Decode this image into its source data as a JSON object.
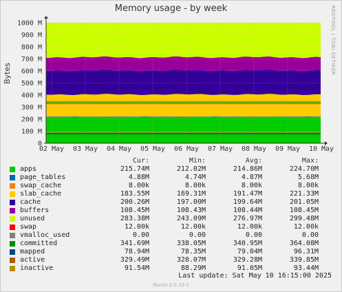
{
  "title": "Memory usage - by week",
  "side_note": "RRDTOOL / TOBI OETIKER",
  "footer": "Munin 2.0.33-1",
  "last_update": "Last update:  Sat May 10 16:15:00 2025",
  "legend_headers": {
    "cur": "Cur:",
    "min": "Min:",
    "avg": "Avg:",
    "max": "Max:"
  },
  "chart_data": {
    "type": "area",
    "title": "Memory usage - by week",
    "ylabel": "Bytes",
    "xlabel": "",
    "ylim": [
      0,
      1000000000
    ],
    "y_ticks": [
      "0",
      "100 M",
      "200 M",
      "300 M",
      "400 M",
      "500 M",
      "600 M",
      "700 M",
      "800 M",
      "900 M",
      "1000 M"
    ],
    "x_ticks": [
      "02 May",
      "03 May",
      "04 May",
      "05 May",
      "06 May",
      "07 May",
      "08 May",
      "09 May",
      "10 May"
    ],
    "grid": true,
    "legend_position": "bottom",
    "stacked_series": [
      {
        "name": "apps",
        "color": "#00cc00",
        "approx_value_M": 216
      },
      {
        "name": "page_tables",
        "color": "#0066b3",
        "approx_value_M": 5
      },
      {
        "name": "swap_cache",
        "color": "#ff8000",
        "approx_value_M": 0
      },
      {
        "name": "slab_cache",
        "color": "#ffcc00",
        "approx_value_M": 184
      },
      {
        "name": "cache",
        "color": "#330099",
        "approx_value_M": 201
      },
      {
        "name": "buffers",
        "color": "#990099",
        "approx_value_M": 108
      },
      {
        "name": "unused",
        "color": "#ccff00",
        "approx_value_M": 283
      },
      {
        "name": "swap",
        "color": "#ff0000",
        "approx_value_M": 0
      }
    ],
    "line_series": [
      {
        "name": "committed",
        "color": "#008f00",
        "approx_value_M": 342
      },
      {
        "name": "mapped",
        "color": "#00487d",
        "approx_value_M": 79
      },
      {
        "name": "active",
        "color": "#b35a00",
        "approx_value_M": 329
      },
      {
        "name": "inactive",
        "color": "#b38f00",
        "approx_value_M": 92
      }
    ]
  },
  "legend": [
    {
      "name": "apps",
      "color": "#00cc00",
      "cur": "215.74M",
      "min": "212.02M",
      "avg": "214.86M",
      "max": "224.70M"
    },
    {
      "name": "page_tables",
      "color": "#0066b3",
      "cur": "4.88M",
      "min": "4.74M",
      "avg": "4.87M",
      "max": "5.68M"
    },
    {
      "name": "swap_cache",
      "color": "#ff8000",
      "cur": "8.00k",
      "min": "8.00k",
      "avg": "8.00k",
      "max": "8.00k"
    },
    {
      "name": "slab_cache",
      "color": "#ffcc00",
      "cur": "183.55M",
      "min": "169.31M",
      "avg": "191.47M",
      "max": "221.33M"
    },
    {
      "name": "cache",
      "color": "#330099",
      "cur": "200.26M",
      "min": "197.00M",
      "avg": "199.64M",
      "max": "201.05M"
    },
    {
      "name": "buffers",
      "color": "#990099",
      "cur": "108.45M",
      "min": "108.43M",
      "avg": "108.44M",
      "max": "108.45M"
    },
    {
      "name": "unused",
      "color": "#ccff00",
      "cur": "283.38M",
      "min": "243.09M",
      "avg": "276.97M",
      "max": "299.48M"
    },
    {
      "name": "swap",
      "color": "#ff0000",
      "cur": "12.00k",
      "min": "12.00k",
      "avg": "12.00k",
      "max": "12.00k"
    },
    {
      "name": "vmalloc_used",
      "color": "#808080",
      "cur": "0.00",
      "min": "0.00",
      "avg": "0.00",
      "max": "0.00"
    },
    {
      "name": "committed",
      "color": "#008f00",
      "cur": "341.69M",
      "min": "338.05M",
      "avg": "340.95M",
      "max": "364.08M"
    },
    {
      "name": "mapped",
      "color": "#00487d",
      "cur": "78.94M",
      "min": "78.35M",
      "avg": "79.04M",
      "max": "96.31M"
    },
    {
      "name": "active",
      "color": "#b35a00",
      "cur": "329.49M",
      "min": "328.07M",
      "avg": "329.28M",
      "max": "339.85M"
    },
    {
      "name": "inactive",
      "color": "#b38f00",
      "cur": "91.54M",
      "min": "88.29M",
      "avg": "91.05M",
      "max": "93.44M"
    }
  ]
}
